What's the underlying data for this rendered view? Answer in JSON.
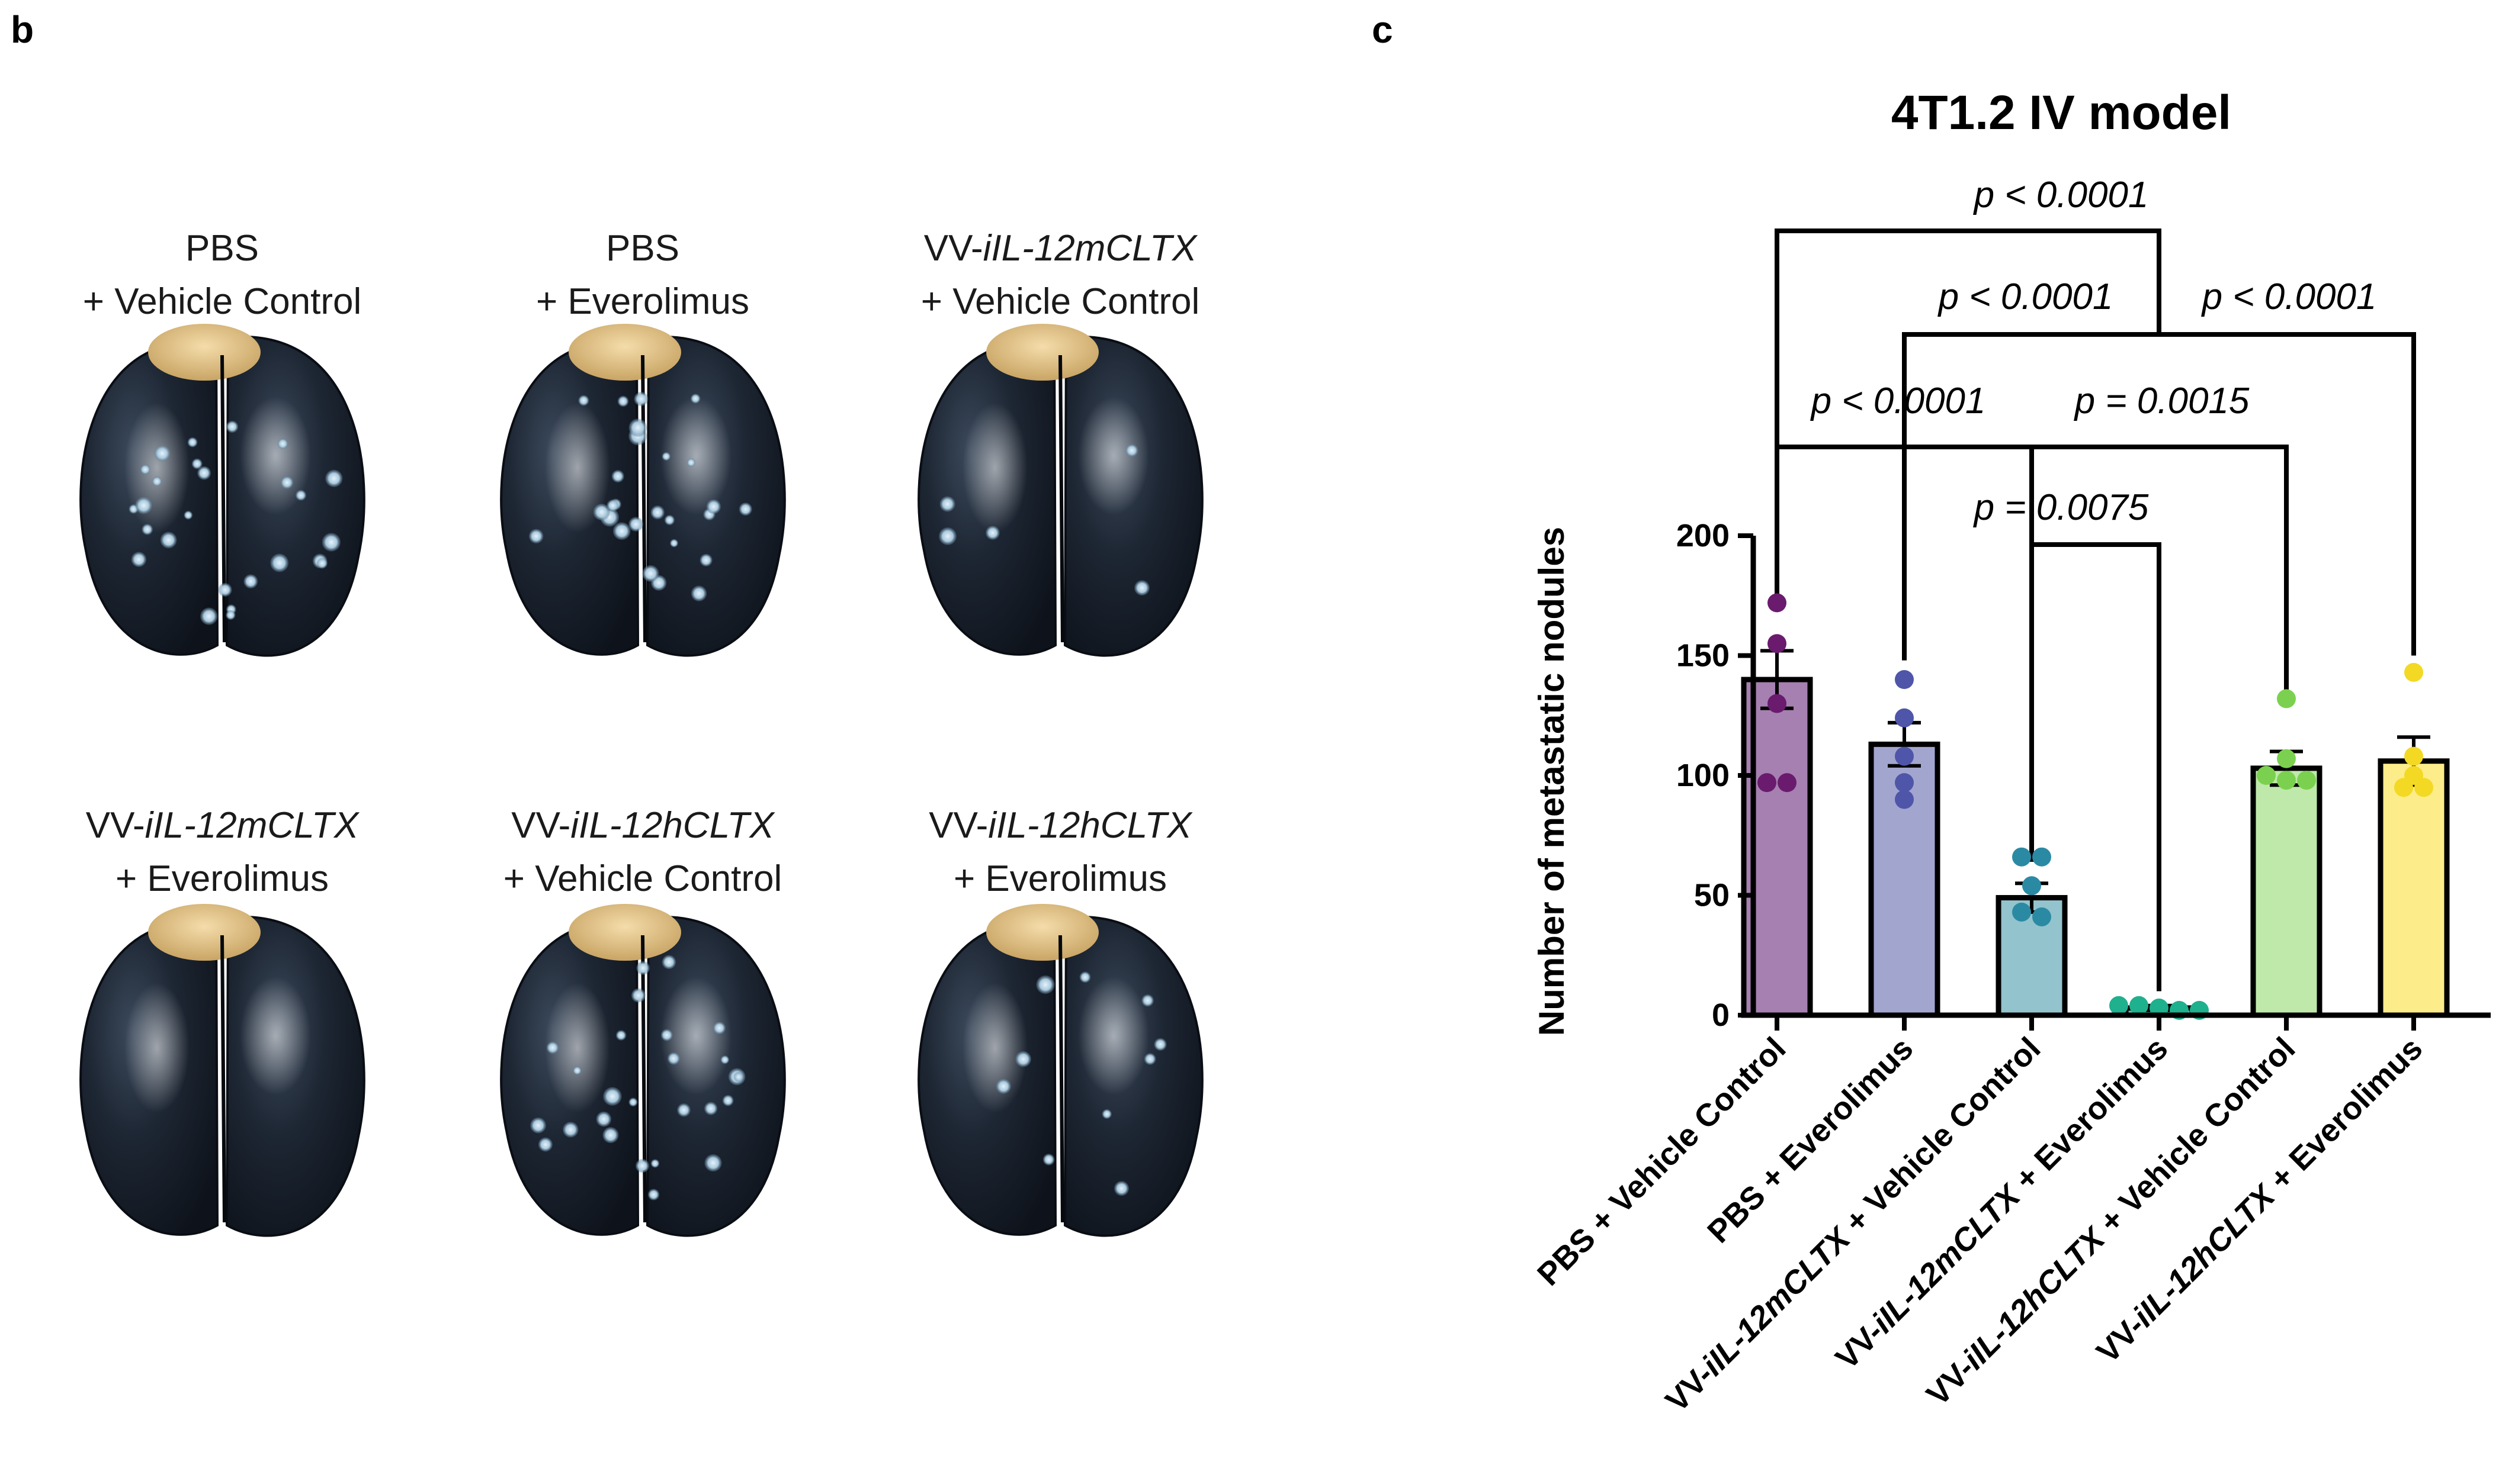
{
  "panel_b": {
    "letter": "b",
    "lungs": [
      {
        "line1": "PBS",
        "line2": "+ Vehicle Control",
        "nodules": "many"
      },
      {
        "line1": "PBS",
        "line2": "+ Everolimus",
        "nodules": "many"
      },
      {
        "line1": "VV-iIL-12mCLTX",
        "line2": "+ Vehicle Control",
        "nodules": "few"
      },
      {
        "line1": "VV-iIL-12mCLTX",
        "line2": "+ Everolimus",
        "nodules": "none"
      },
      {
        "line1": "VV-iIL-12hCLTX",
        "line2": "+ Vehicle Control",
        "nodules": "many"
      },
      {
        "line1": "VV-iIL-12hCLTX",
        "line2": "+ Everolimus",
        "nodules": "some"
      }
    ]
  },
  "panel_c": {
    "letter": "c"
  },
  "chart_data": {
    "type": "bar",
    "title": "4T1.2 IV model",
    "ylabel": "Number of metastatic nodules",
    "xlabel": "",
    "ylim": [
      0,
      200
    ],
    "yticks": [
      "0",
      "50",
      "100",
      "150",
      "200"
    ],
    "yticks_values": [
      0,
      50,
      100,
      150,
      200
    ],
    "categories": [
      "PBS + Vehicle Control",
      "PBS + Everolimus",
      "VV-iIL-12mCLTX + Vehicle Control",
      "VV-iIL-12mCLTX + Everolimus",
      "VV-iIL-12hCLTX + Vehicle Control",
      "VV-iIL-12hCLTX + Everolimus"
    ],
    "values": [
      140,
      113,
      49,
      3,
      103,
      106
    ],
    "sem": [
      12,
      9,
      6,
      1,
      7,
      10
    ],
    "points": [
      [
        172,
        155,
        130,
        97,
        97
      ],
      [
        140,
        124,
        108,
        97,
        90
      ],
      [
        66,
        66,
        54,
        43,
        41
      ],
      [
        4,
        4,
        3,
        2,
        2
      ],
      [
        132,
        107,
        100,
        98,
        98
      ],
      [
        143,
        108,
        100,
        95,
        95
      ]
    ],
    "bar_colors": [
      "#a680b0",
      "#a2a6cf",
      "#93c3cd",
      "#5cc4b0",
      "#bfe9aa",
      "#fdec8a"
    ],
    "point_colors": [
      "#6a1b6e",
      "#4f55a8",
      "#2b8aa3",
      "#1fb08e",
      "#7bd14f",
      "#f3d923"
    ],
    "comparisons": [
      {
        "label": "p < 0.0001",
        "from": "PBS + Vehicle Control",
        "to": "VV-iIL-12mCLTX + Everolimus"
      },
      {
        "label": "p < 0.0001",
        "from": "PBS + Everolimus",
        "to": "VV-iIL-12mCLTX + Everolimus"
      },
      {
        "label": "p < 0.0001",
        "from": "VV-iIL-12mCLTX + Everolimus",
        "to": "VV-iIL-12hCLTX + Everolimus"
      },
      {
        "label": "p < 0.0001",
        "from": "PBS + Vehicle Control",
        "to": "VV-iIL-12mCLTX + Vehicle Control"
      },
      {
        "label": "p = 0.0015",
        "from": "VV-iIL-12mCLTX + Vehicle Control",
        "to": "VV-iIL-12hCLTX + Vehicle Control"
      },
      {
        "label": "p = 0.0075",
        "from": "VV-iIL-12mCLTX + Vehicle Control",
        "to": "VV-iIL-12mCLTX + Everolimus"
      }
    ]
  }
}
